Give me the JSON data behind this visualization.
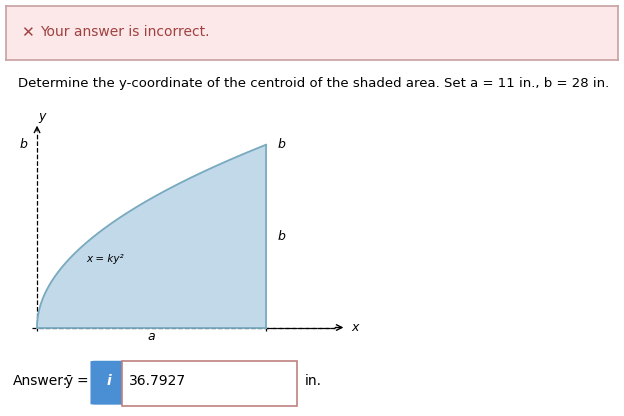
{
  "error_banner_bg": "#fce8e8",
  "error_banner_border": "#c9a0a0",
  "error_text": "Your answer is incorrect.",
  "error_x_color": "#a04040",
  "problem_text": "Determine the y-coordinate of the centroid of the shaded area. Set a = 11 in., b = 28 in.",
  "answer_value": "36.7927",
  "answer_unit": "in.",
  "answer_box_border": "#c0706070",
  "info_button_color": "#4a8fd4",
  "shade_fill": "#c2d9ea",
  "shade_edge": "#7aaabf",
  "curve_label": "x = ky²",
  "bg_color": "#ffffff",
  "a_val": 11,
  "b_val": 28,
  "fig_width": 6.24,
  "fig_height": 4.16
}
